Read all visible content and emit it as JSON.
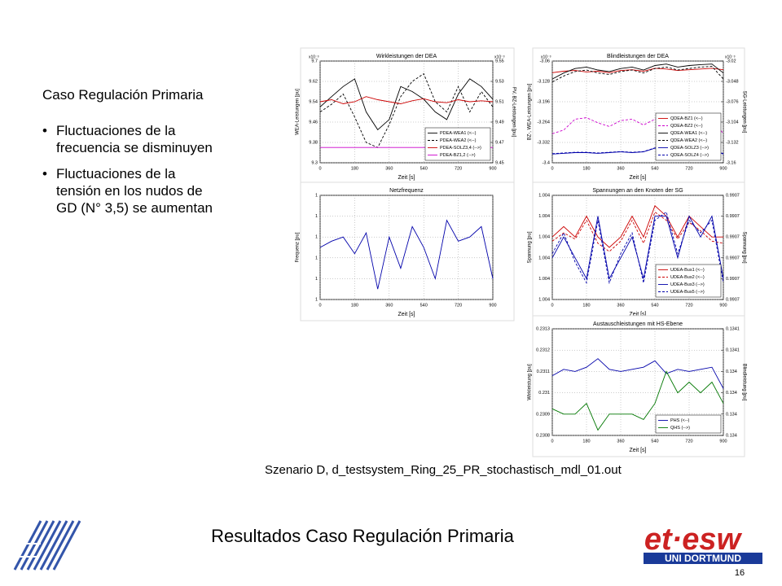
{
  "heading": "Caso Regulación Primaria",
  "bullets": [
    [
      "Fluctuaciones de la",
      "frecuencia se disminuyen"
    ],
    [
      "Fluctuaciones de la",
      "tensión en los nudos de",
      "GD (N° 3,5) se aumentan"
    ]
  ],
  "caption": "Szenario D, d_testsystem_Ring_25_PR_stochastisch_mdl_01.out",
  "title": "Resultados Caso Regulación Primaria",
  "page": "16",
  "logo": {
    "main": "et·esw",
    "sub": "UNI DORTMUND"
  },
  "plots": [
    {
      "title": "Wirkleistungen der DEA",
      "xlabel": "Zeit [s]",
      "ylabel": "WEA-Leistungen [pu]",
      "y2label": "PV, BZ-Leistungen [pu]",
      "exponent": "x10⁻³",
      "exponent2": "x10⁻³",
      "x": [
        0,
        60,
        120,
        180,
        240,
        300,
        360,
        420,
        480,
        540,
        600,
        660,
        720,
        780,
        840,
        900
      ],
      "xlim": [
        0,
        900
      ],
      "xticks": [
        0,
        180,
        360,
        540,
        720,
        900
      ],
      "ylim": [
        9.3,
        9.7
      ],
      "yticks": [
        9.3,
        9.38,
        9.46,
        9.54,
        9.62,
        9.7
      ],
      "y2lim": [
        9.45,
        9.55
      ],
      "y2ticks": [
        9.45,
        9.47,
        9.49,
        9.51,
        9.53,
        9.55
      ],
      "series": [
        {
          "name": "PDEA-WEA1 (<--)",
          "color": "#000000",
          "dash": false,
          "values": [
            9.52,
            9.56,
            9.6,
            9.63,
            9.5,
            9.43,
            9.47,
            9.6,
            9.58,
            9.55,
            9.5,
            9.47,
            9.57,
            9.63,
            9.6,
            9.55
          ]
        },
        {
          "name": "PDEA-WEA2 (<--)",
          "color": "#000000",
          "dash": true,
          "values": [
            9.5,
            9.53,
            9.57,
            9.48,
            9.38,
            9.36,
            9.45,
            9.56,
            9.62,
            9.65,
            9.54,
            9.5,
            9.6,
            9.5,
            9.58,
            9.52
          ]
        },
        {
          "name": "PDEA-SOLZ3,4 (-->)",
          "color": "#cc0000",
          "dash": false,
          "axis": "y2",
          "values": [
            9.51,
            9.512,
            9.508,
            9.51,
            9.515,
            9.512,
            9.51,
            9.508,
            9.511,
            9.513,
            9.51,
            9.509,
            9.512,
            9.51,
            9.511,
            9.51
          ]
        },
        {
          "name": "PDEA-BZ1,2 (-->)",
          "color": "#cc00cc",
          "dash": false,
          "axis": "y2",
          "values": [
            9.465,
            9.465,
            9.465,
            9.465,
            9.465,
            9.465,
            9.465,
            9.465,
            9.465,
            9.465,
            9.465,
            9.465,
            9.465,
            9.465,
            9.465,
            9.465
          ]
        }
      ]
    },
    {
      "title": "Blindleistungen der DEA",
      "xlabel": "Zeit [s]",
      "ylabel": "BZ-, WEA-Leistungen [pu]",
      "y2label": "SG-Leistungen [pu]",
      "exponent": "x10⁻³",
      "exponent2": "x10⁻³",
      "x": [
        0,
        60,
        120,
        180,
        240,
        300,
        360,
        420,
        480,
        540,
        600,
        660,
        720,
        780,
        840,
        900
      ],
      "xlim": [
        0,
        900
      ],
      "xticks": [
        0,
        180,
        360,
        540,
        720,
        900
      ],
      "ylim": [
        -3.4,
        -3.06
      ],
      "yticks": [
        -3.4,
        -3.332,
        -3.264,
        -3.196,
        -3.128,
        -3.06
      ],
      "y2lim": [
        -3.16,
        -3.02
      ],
      "y2ticks": [
        -3.16,
        -3.132,
        -3.104,
        -3.076,
        -3.048,
        -3.02
      ],
      "series": [
        {
          "name": "QDEA-BZ1 (<--)",
          "color": "#cc0000",
          "dash": false,
          "axis": "y2",
          "values": [
            -3.036,
            -3.034,
            -3.033,
            -3.035,
            -3.034,
            -3.036,
            -3.033,
            -3.032,
            -3.034,
            -3.03,
            -3.031,
            -3.033,
            -3.032,
            -3.031,
            -3.03,
            -3.032
          ]
        },
        {
          "name": "QDEA-BZ2 (<--)",
          "color": "#cc00cc",
          "dash": true,
          "axis": "y2",
          "values": [
            -3.12,
            -3.115,
            -3.1,
            -3.098,
            -3.105,
            -3.11,
            -3.102,
            -3.1,
            -3.108,
            -3.1,
            -3.095,
            -3.098,
            -3.1,
            -3.105,
            -3.1,
            -3.12
          ]
        },
        {
          "name": "QDEA-WEA1 (<--)",
          "color": "#000000",
          "dash": false,
          "values": [
            -3.12,
            -3.1,
            -3.085,
            -3.08,
            -3.09,
            -3.095,
            -3.085,
            -3.08,
            -3.09,
            -3.075,
            -3.07,
            -3.08,
            -3.075,
            -3.072,
            -3.07,
            -3.1
          ]
        },
        {
          "name": "QDEA-WEA2 (<--)",
          "color": "#000000",
          "dash": true,
          "values": [
            -3.13,
            -3.11,
            -3.095,
            -3.09,
            -3.1,
            -3.105,
            -3.095,
            -3.09,
            -3.1,
            -3.085,
            -3.08,
            -3.09,
            -3.085,
            -3.08,
            -3.078,
            -3.12
          ]
        },
        {
          "name": "QDEA-SOLZ3 (-->)",
          "color": "#0000aa",
          "dash": false,
          "axis": "y2",
          "values": [
            -3.148,
            -3.147,
            -3.146,
            -3.146,
            -3.147,
            -3.146,
            -3.145,
            -3.146,
            -3.145,
            -3.14,
            -3.141,
            -3.142,
            -3.141,
            -3.14,
            -3.141,
            -3.148
          ]
        },
        {
          "name": "QDEA-SOLZ4 (-->)",
          "color": "#0000aa",
          "dash": true,
          "axis": "y2",
          "values": [
            -3.1475,
            -3.1465,
            -3.1455,
            -3.1455,
            -3.1465,
            -3.1455,
            -3.1445,
            -3.1455,
            -3.1445,
            -3.1395,
            -3.1405,
            -3.1415,
            -3.1405,
            -3.1395,
            -3.1405,
            -3.1475
          ]
        }
      ]
    },
    {
      "title": "Netzfrequenz",
      "xlabel": "Zeit [s]",
      "ylabel": "Frequenz [pu]",
      "x": [
        0,
        60,
        120,
        180,
        240,
        300,
        360,
        420,
        480,
        540,
        600,
        660,
        720,
        780,
        840,
        900
      ],
      "xlim": [
        0,
        900
      ],
      "xticks": [
        0,
        180,
        360,
        540,
        720,
        900
      ],
      "ylim": [
        0.9998,
        1.0003
      ],
      "yticks": [
        {
          "value": 0.9998,
          "label": "1"
        },
        {
          "value": 0.9999,
          "label": "1"
        },
        {
          "value": 1,
          "label": "1"
        },
        {
          "value": 1.0001,
          "label": "1"
        },
        {
          "value": 1.0002,
          "label": "1"
        },
        {
          "value": 1.0003,
          "label": "1"
        }
      ],
      "series": [
        {
          "name": "Frequenz",
          "color": "#0000aa",
          "dash": false,
          "values": [
            1.00005,
            1.00008,
            1.0001,
            1.00002,
            1.00012,
            0.99985,
            1.0001,
            0.99995,
            1.00015,
            1.00005,
            0.9999,
            1.00018,
            1.00008,
            1.0001,
            1.00015,
            0.9999
          ]
        }
      ]
    },
    {
      "title": "Spannungen an den Knoten der SG",
      "xlabel": "Zeit [s]",
      "ylabel": "Spannung [pu]",
      "y2label": "Spannung [pu]",
      "x": [
        0,
        60,
        120,
        180,
        240,
        300,
        360,
        420,
        480,
        540,
        600,
        660,
        720,
        780,
        840,
        900
      ],
      "xlim": [
        0,
        900
      ],
      "xticks": [
        0,
        180,
        360,
        540,
        720,
        900
      ],
      "ylim": [
        1.0038,
        1.0043
      ],
      "yticks": [
        {
          "value": 1.0038,
          "label": "1.004"
        },
        {
          "value": 1.0039,
          "label": "1.004"
        },
        {
          "value": 1.004,
          "label": "1.004"
        },
        {
          "value": 1.0041,
          "label": "1.004"
        },
        {
          "value": 1.0042,
          "label": "1.004"
        },
        {
          "value": 1.0043,
          "label": "1.004"
        }
      ],
      "y2lim": [
        0.99068,
        0.99073
      ],
      "y2ticks": [
        {
          "value": 0.99068,
          "label": "0.9907"
        },
        {
          "value": 0.99069,
          "label": "0.9907"
        },
        {
          "value": 0.9907,
          "label": "0.9907"
        },
        {
          "value": 0.99071,
          "label": "0.9907"
        },
        {
          "value": 0.99072,
          "label": "0.9907"
        },
        {
          "value": 0.99073,
          "label": "0.9907"
        }
      ],
      "series": [
        {
          "name": "UDEA-Bus1 (<--)",
          "color": "#cc0000",
          "dash": false,
          "values": [
            1.0041,
            1.00415,
            1.0041,
            1.0042,
            1.0041,
            1.00405,
            1.0041,
            1.0042,
            1.0041,
            1.00425,
            1.0042,
            1.0041,
            1.0042,
            1.00415,
            1.0041,
            1.0041
          ]
        },
        {
          "name": "UDEA-Bus2 (<--)",
          "color": "#cc0000",
          "dash": true,
          "values": [
            1.00408,
            1.00412,
            1.00409,
            1.00418,
            1.00407,
            1.00403,
            1.00408,
            1.00418,
            1.00407,
            1.00422,
            1.00418,
            1.00409,
            1.00417,
            1.00413,
            1.00408,
            1.00407
          ]
        },
        {
          "name": "UDEA-Bus3 (-->)",
          "color": "#0000aa",
          "dash": false,
          "axis": "y2",
          "values": [
            0.9907,
            0.99071,
            0.9907,
            0.99069,
            0.99072,
            0.99069,
            0.9907,
            0.99071,
            0.99069,
            0.99072,
            0.99072,
            0.9907,
            0.99072,
            0.99071,
            0.99072,
            0.99069
          ]
        },
        {
          "name": "UDEA-Bus5 (-->)",
          "color": "#0000aa",
          "dash": true,
          "axis": "y2",
          "values": [
            0.990702,
            0.990712,
            0.990698,
            0.990688,
            0.990718,
            0.990688,
            0.990702,
            0.990712,
            0.990688,
            0.990718,
            0.990722,
            0.990702,
            0.990718,
            0.990712,
            0.990718,
            0.990688
          ]
        }
      ]
    },
    {
      "title": "Austauschleistungen mit HS-Ebene",
      "xlabel": "Zeit [s]",
      "ylabel": "Wirkleistung [pu]",
      "y2label": "Blindleistung [pu]",
      "x": [
        0,
        60,
        120,
        180,
        240,
        300,
        360,
        420,
        480,
        540,
        600,
        660,
        720,
        780,
        840,
        900
      ],
      "xlim": [
        0,
        900
      ],
      "xticks": [
        0,
        180,
        360,
        540,
        720,
        900
      ],
      "ylim": [
        0.2308,
        0.2313
      ],
      "yticks": [
        0.2308,
        0.2309,
        0.231,
        0.2311,
        0.2312,
        0.2313
      ],
      "y2lim": [
        0.134,
        0.1341
      ],
      "y2ticks": [
        {
          "value": 0.134,
          "label": "0.134"
        },
        {
          "value": 0.13402,
          "label": "0.134"
        },
        {
          "value": 0.13404,
          "label": "0.134"
        },
        {
          "value": 0.13406,
          "label": "0.134"
        },
        {
          "value": 0.13408,
          "label": "0.1341"
        },
        {
          "value": 0.1341,
          "label": "0.1341"
        }
      ],
      "series": [
        {
          "name": "PHS (<--)",
          "color": "#0000aa",
          "dash": false,
          "values": [
            0.23108,
            0.23111,
            0.2311,
            0.23112,
            0.23116,
            0.23111,
            0.2311,
            0.23111,
            0.23112,
            0.23115,
            0.23109,
            0.23111,
            0.2311,
            0.23111,
            0.23112,
            0.23102
          ]
        },
        {
          "name": "QHS (-->)",
          "color": "#007700",
          "dash": false,
          "axis": "y2",
          "values": [
            0.134025,
            0.13402,
            0.13402,
            0.13403,
            0.134005,
            0.13402,
            0.13402,
            0.13402,
            0.134015,
            0.13403,
            0.13406,
            0.13404,
            0.13405,
            0.13404,
            0.13405,
            0.13403
          ]
        }
      ]
    }
  ]
}
